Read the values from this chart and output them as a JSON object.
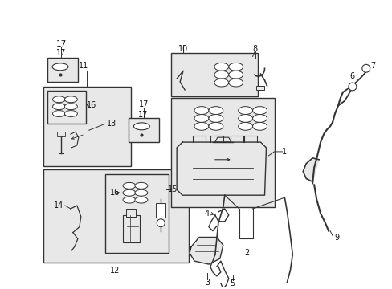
{
  "bg_color": "#ffffff",
  "line_color": "#333333",
  "label_color": "#111111",
  "figsize": [
    4.89,
    3.6
  ],
  "dpi": 100,
  "label_fontsize": 7.0
}
